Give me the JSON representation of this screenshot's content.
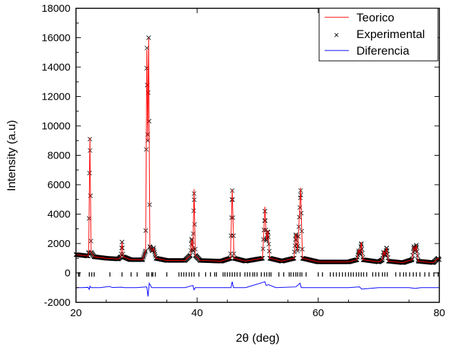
{
  "chart_data": {
    "type": "line",
    "xlabel": "2θ (deg)",
    "ylabel": "Intensity (a.u)",
    "xlim": [
      20,
      80
    ],
    "ylim": [
      -2000,
      18000
    ],
    "xticks": [
      20,
      40,
      60,
      80
    ],
    "yticks": [
      -2000,
      0,
      2000,
      4000,
      6000,
      8000,
      10000,
      12000,
      14000,
      16000,
      18000
    ],
    "legend_position": "top-right",
    "grid": false,
    "series": [
      {
        "name": "Teorico",
        "color": "#ff0000",
        "style": "line",
        "x": [
          20,
          21,
          22,
          22.1,
          22.3,
          22.5,
          23,
          25,
          27,
          27.4,
          27.6,
          27.8,
          29,
          31,
          31.5,
          31.7,
          31.85,
          32.0,
          32.2,
          32.6,
          32.8,
          33.2,
          35,
          38,
          38.9,
          39.1,
          39.3,
          39.5,
          39.7,
          40.5,
          44,
          45.5,
          45.8,
          46.1,
          48,
          50.8,
          51.2,
          51.45,
          51.7,
          52.0,
          54,
          56,
          56.3,
          56.6,
          57.1,
          57.4,
          60,
          65,
          66.4,
          66.7,
          66.9,
          67.1,
          67.4,
          70,
          70.6,
          70.8,
          71.0,
          71.3,
          71.6,
          74,
          75.5,
          75.8,
          76.0,
          76.2,
          76.5,
          79,
          79.8,
          80
        ],
        "y": [
          1250,
          1200,
          1150,
          1400,
          9200,
          1400,
          1100,
          1000,
          950,
          1100,
          2100,
          1100,
          900,
          900,
          1500,
          15200,
          9000,
          16000,
          1800,
          1500,
          1700,
          1000,
          850,
          850,
          1200,
          2300,
          1500,
          5700,
          1200,
          850,
          800,
          1000,
          5700,
          1000,
          800,
          1000,
          4500,
          2200,
          2900,
          1000,
          800,
          1000,
          2700,
          1500,
          5800,
          1000,
          750,
          750,
          900,
          1600,
          1300,
          2100,
          900,
          750,
          900,
          1500,
          1200,
          1700,
          800,
          700,
          900,
          1800,
          1500,
          1900,
          800,
          700,
          1000,
          900
        ]
      },
      {
        "name": "Experimental",
        "color": "#000000",
        "style": "x-marker",
        "x": [
          20,
          21,
          22,
          22.1,
          22.3,
          22.5,
          23,
          25,
          27,
          27.4,
          27.6,
          27.8,
          29,
          31,
          31.5,
          31.7,
          31.85,
          32.0,
          32.2,
          32.6,
          32.8,
          33.2,
          35,
          38,
          38.9,
          39.1,
          39.3,
          39.5,
          39.7,
          40.5,
          44,
          45.5,
          45.8,
          46.1,
          48,
          50.8,
          51.2,
          51.45,
          51.7,
          52.0,
          54,
          56,
          56.3,
          56.6,
          57.1,
          57.4,
          60,
          65,
          66.4,
          66.7,
          66.9,
          67.1,
          67.4,
          70,
          70.6,
          70.8,
          71.0,
          71.3,
          71.6,
          74,
          75.5,
          75.8,
          76.0,
          76.2,
          76.5,
          79,
          79.8,
          80
        ],
        "y": [
          1250,
          1200,
          1150,
          1400,
          9100,
          1400,
          1100,
          1000,
          950,
          1100,
          2100,
          1100,
          900,
          900,
          1500,
          15300,
          9000,
          16000,
          1800,
          1500,
          1700,
          1000,
          850,
          850,
          1200,
          2300,
          1500,
          5400,
          1200,
          850,
          800,
          1000,
          5600,
          1000,
          800,
          1000,
          4200,
          2200,
          2800,
          1000,
          800,
          1000,
          2600,
          1500,
          5600,
          1000,
          750,
          750,
          900,
          1500,
          1300,
          2000,
          900,
          750,
          900,
          1400,
          1200,
          1700,
          800,
          700,
          900,
          1800,
          1500,
          1900,
          800,
          700,
          1000,
          900
        ]
      },
      {
        "name": "Diferencia",
        "color": "#0000ff",
        "style": "line",
        "x": [
          20,
          21,
          22,
          22.2,
          22.3,
          22.5,
          24,
          25.5,
          26,
          27.6,
          28,
          30,
          31.7,
          31.9,
          32.1,
          32.5,
          34,
          36,
          38,
          39.3,
          39.5,
          39.7,
          42,
          45.6,
          45.8,
          46.0,
          48,
          51.2,
          51.4,
          51.8,
          53,
          56.3,
          57.0,
          57.2,
          60,
          65,
          66.8,
          67.2,
          70,
          72,
          75,
          76,
          77,
          80
        ],
        "y": [
          -1000,
          -1000,
          -980,
          -1120,
          -900,
          -1000,
          -1000,
          -920,
          -990,
          -970,
          -1000,
          -1000,
          -950,
          -1600,
          -700,
          -1000,
          -1000,
          -1000,
          -1000,
          -850,
          -1150,
          -1000,
          -1000,
          -1000,
          -600,
          -1000,
          -1000,
          -600,
          -850,
          -800,
          -1000,
          -950,
          -700,
          -1000,
          -1000,
          -1000,
          -950,
          -1100,
          -1000,
          -1000,
          -1000,
          -1050,
          -1000,
          -1000
        ]
      }
    ],
    "reflections": [
      20.4,
      20.6,
      22.2,
      22.6,
      23.0,
      25.6,
      27.6,
      29.1,
      30.1,
      31.7,
      32.0,
      32.5,
      32.7,
      33.1,
      35.0,
      37.0,
      37.4,
      37.8,
      38.2,
      38.7,
      39.1,
      39.5,
      40.3,
      41.4,
      42.2,
      42.9,
      43.2,
      44.3,
      44.6,
      45.0,
      45.4,
      45.8,
      46.2,
      46.6,
      47.1,
      47.9,
      48.3,
      48.7,
      49.2,
      49.5,
      49.9,
      50.6,
      51.1,
      51.5,
      51.9,
      52.2,
      53.5,
      54.3,
      55.2,
      55.5,
      55.9,
      56.3,
      56.6,
      57.0,
      57.3,
      58.0,
      60.0,
      60.7,
      62.0,
      62.5,
      63.0,
      63.5,
      64.0,
      64.5,
      65.0,
      65.4,
      65.8,
      66.3,
      66.7,
      67.1,
      67.5,
      68.0,
      69.0,
      69.5,
      70.0,
      70.6,
      71.0,
      71.4,
      72.8,
      73.5,
      74.1,
      74.5,
      75.1,
      75.7,
      76.2,
      76.8,
      77.6,
      78.3,
      79.1,
      79.8
    ]
  }
}
